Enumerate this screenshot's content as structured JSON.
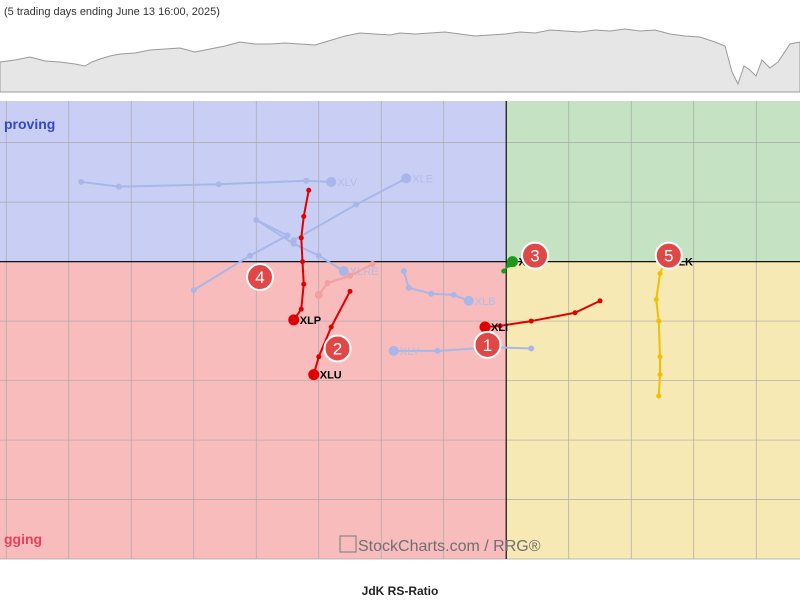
{
  "header": {
    "subtitle": "(5 trading days ending June 13 16:00, 2025)"
  },
  "colors": {
    "improving": "#c9cef5",
    "leading": "#c5e2c2",
    "weakening": "#f7e9b4",
    "lagging": "#f8bcbc",
    "faded_trail": "#a8b7e8",
    "lagging_text": "#e8405c",
    "improving_text": "#3348c4",
    "red_trail": "#e00000",
    "yellow_trail": "#f0c000",
    "green_trail": "#1a9a1a",
    "marker_badge": "#e04848"
  },
  "chart_data": {
    "type": "scatter",
    "xlabel": "JdK RS-Ratio",
    "xlim": [
      95.95,
      102.35
    ],
    "ylim": [
      97.5,
      101.35
    ],
    "center": [
      100,
      100
    ],
    "x_ticks": [
      "96",
      "96.5",
      "97",
      "97.5",
      "98",
      "98.5",
      "99",
      "99.5",
      "100",
      "100.5",
      "101",
      "101.5",
      "102"
    ],
    "quadrant_labels": {
      "improving": "proving",
      "lagging": "gging"
    },
    "watermark": "StockCharts.com / RRG®",
    "grid": true,
    "series": [
      {
        "name": "XLV",
        "style": "faded",
        "points": [
          [
            96.6,
            100.67
          ],
          [
            96.9,
            100.63
          ],
          [
            97.7,
            100.65
          ],
          [
            98.4,
            100.68
          ],
          [
            98.6,
            100.67
          ]
        ]
      },
      {
        "name": "XLE",
        "style": "faded",
        "points": [
          [
            98.3,
            100.18
          ],
          [
            98.8,
            100.48
          ],
          [
            99.2,
            100.7
          ]
        ]
      },
      {
        "name": "XLRE",
        "style": "faded",
        "points": [
          [
            97.5,
            99.76
          ],
          [
            97.95,
            100.05
          ],
          [
            98.25,
            100.22
          ],
          [
            98.0,
            100.35
          ],
          [
            98.3,
            100.15
          ],
          [
            98.5,
            100.05
          ],
          [
            98.7,
            99.92
          ]
        ]
      },
      {
        "name": "XLB",
        "style": "faded",
        "points": [
          [
            99.18,
            99.92
          ],
          [
            99.22,
            99.78
          ],
          [
            99.4,
            99.73
          ],
          [
            99.58,
            99.72
          ],
          [
            99.7,
            99.67
          ]
        ]
      },
      {
        "name": "XLY",
        "style": "faded",
        "points": [
          [
            100.2,
            99.27
          ],
          [
            99.9,
            99.28
          ],
          [
            99.45,
            99.25
          ],
          [
            99.1,
            99.25
          ]
        ]
      },
      {
        "name": "XLI",
        "style": "red",
        "points": [
          [
            100.75,
            99.67
          ],
          [
            100.55,
            99.57
          ],
          [
            100.2,
            99.5
          ],
          [
            99.95,
            99.46
          ],
          [
            99.83,
            99.45
          ]
        ]
      },
      {
        "name": "XLP",
        "style": "red",
        "points": [
          [
            98.42,
            100.6
          ],
          [
            98.38,
            100.38
          ],
          [
            98.36,
            100.2
          ],
          [
            98.37,
            100.0
          ],
          [
            98.38,
            99.81
          ],
          [
            98.36,
            99.6
          ],
          [
            98.3,
            99.51
          ]
        ]
      },
      {
        "name": "XLU",
        "style": "red",
        "points": [
          [
            98.75,
            99.75
          ],
          [
            98.6,
            99.45
          ],
          [
            98.5,
            99.2
          ],
          [
            98.46,
            99.05
          ]
        ]
      },
      {
        "name": "XLU-faded",
        "style": "faded-red",
        "points": [
          [
            98.93,
            99.98
          ],
          [
            98.75,
            99.88
          ],
          [
            98.57,
            99.82
          ],
          [
            98.5,
            99.72
          ]
        ]
      },
      {
        "name": "XLC",
        "style": "green",
        "points": [
          [
            99.98,
            99.92
          ],
          [
            100.02,
            99.97
          ],
          [
            100.05,
            100.0
          ]
        ]
      },
      {
        "name": "XLK",
        "style": "yellow",
        "points": [
          [
            101.22,
            98.87
          ],
          [
            101.23,
            99.05
          ],
          [
            101.23,
            99.2
          ],
          [
            101.22,
            99.5
          ],
          [
            101.2,
            99.68
          ],
          [
            101.23,
            99.9
          ],
          [
            101.27,
            100.0
          ]
        ]
      }
    ],
    "markers": [
      {
        "label": "1",
        "x": 99.85,
        "y": 99.3
      },
      {
        "label": "2",
        "x": 98.65,
        "y": 99.27
      },
      {
        "label": "3",
        "x": 100.23,
        "y": 100.05
      },
      {
        "label": "4",
        "x": 98.03,
        "y": 99.87
      },
      {
        "label": "5",
        "x": 101.3,
        "y": 100.05
      }
    ]
  }
}
